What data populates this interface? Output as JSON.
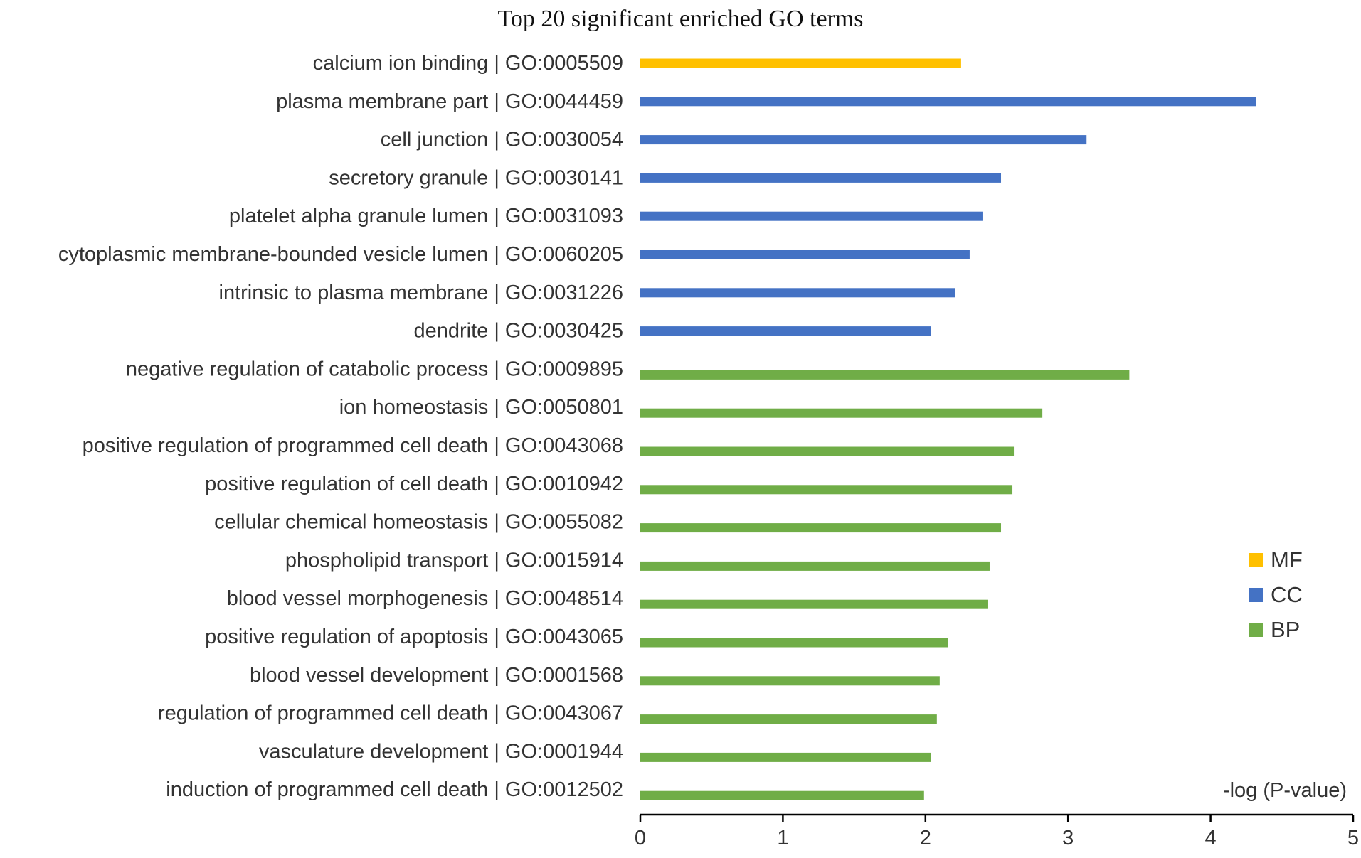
{
  "chart_data": {
    "type": "bar",
    "orientation": "horizontal",
    "title": "Top 20 significant enriched GO terms",
    "xlabel": "-log (P-value)",
    "ylabel": "",
    "xlim": [
      0,
      5
    ],
    "xticks": [
      "0",
      "1",
      "2",
      "3",
      "4",
      "5"
    ],
    "grid": false,
    "legend_position": "right",
    "categories": [
      "calcium ion binding | GO:0005509",
      "plasma membrane part | GO:0044459",
      "cell junction | GO:0030054",
      "secretory granule | GO:0030141",
      "platelet alpha granule lumen | GO:0031093",
      "cytoplasmic membrane-bounded vesicle lumen | GO:0060205",
      "intrinsic to plasma membrane | GO:0031226",
      "dendrite | GO:0030425",
      "negative regulation of catabolic process | GO:0009895",
      "ion homeostasis | GO:0050801",
      "positive regulation of programmed cell death | GO:0043068",
      "positive regulation of cell death | GO:0010942",
      "cellular chemical homeostasis | GO:0055082",
      "phospholipid transport | GO:0015914",
      "blood vessel morphogenesis | GO:0048514",
      "positive regulation of apoptosis | GO:0043065",
      "blood vessel development | GO:0001568",
      "regulation of programmed cell death | GO:0043067",
      "vasculature development | GO:0001944",
      "induction of programmed cell death | GO:0012502"
    ],
    "series": [
      {
        "name": "MF",
        "color": "#FFC000",
        "values": [
          2.25,
          null,
          null,
          null,
          null,
          null,
          null,
          null,
          null,
          null,
          null,
          null,
          null,
          null,
          null,
          null,
          null,
          null,
          null,
          null
        ]
      },
      {
        "name": "CC",
        "color": "#4472C4",
        "values": [
          null,
          4.32,
          3.13,
          2.53,
          2.4,
          2.31,
          2.21,
          2.04,
          null,
          null,
          null,
          null,
          null,
          null,
          null,
          null,
          null,
          null,
          null,
          null
        ]
      },
      {
        "name": "BP",
        "color": "#70AD47",
        "values": [
          null,
          null,
          null,
          null,
          null,
          null,
          null,
          null,
          3.43,
          2.82,
          2.62,
          2.61,
          2.53,
          2.45,
          2.44,
          2.16,
          2.1,
          2.08,
          2.04,
          1.99
        ]
      }
    ]
  }
}
